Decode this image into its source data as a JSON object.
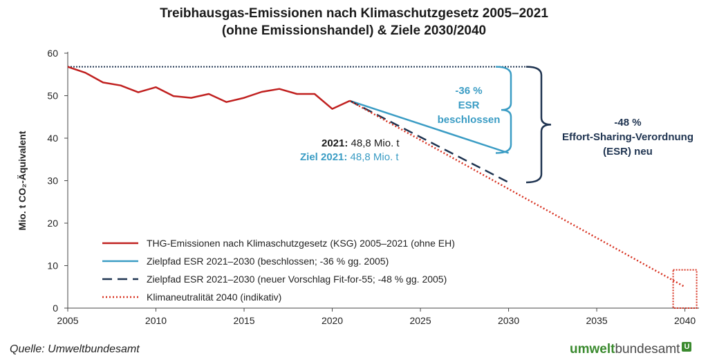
{
  "chart_data": {
    "type": "line",
    "title": "Treibhausgas-Emissionen nach Klimaschutzgesetz 2005–2021",
    "subtitle": "(ohne Emissionshandel) & Ziele 2030/2040",
    "ylabel": "Mio. t CO₂-Äquivalent",
    "xlabel": "",
    "xlim": [
      2005,
      2040.8
    ],
    "ylim": [
      0,
      60
    ],
    "xticks": [
      2005,
      2010,
      2015,
      2020,
      2025,
      2030,
      2035,
      2040
    ],
    "yticks": [
      0,
      10,
      20,
      30,
      40,
      50,
      60
    ],
    "legend_position": "lower-left",
    "grid": false,
    "series": [
      {
        "name": "THG-Emissionen nach Klimaschutzgesetz (KSG) 2005–2021 (ohne EH)",
        "color": "#c0201f",
        "style": "solid",
        "x": [
          2005,
          2006,
          2007,
          2008,
          2009,
          2010,
          2011,
          2012,
          2013,
          2014,
          2015,
          2016,
          2017,
          2018,
          2019,
          2020,
          2021
        ],
        "y": [
          56.8,
          55.4,
          53.1,
          52.4,
          50.8,
          52.0,
          49.9,
          49.5,
          50.4,
          48.5,
          49.5,
          50.9,
          51.6,
          50.4,
          50.4,
          46.9,
          48.8
        ]
      },
      {
        "name": "Zielpfad ESR 2021–2030 (beschlossen; -36 % gg. 2005)",
        "color": "#3a9cc4",
        "style": "solid",
        "x": [
          2021,
          2030
        ],
        "y": [
          48.8,
          36.5
        ]
      },
      {
        "name": "Zielpfad ESR 2021–2030 (neuer Vorschlag Fit-for-55; -48 % gg. 2005)",
        "color": "#1e3350",
        "style": "dashed",
        "x": [
          2021,
          2030
        ],
        "y": [
          48.8,
          29.6
        ]
      },
      {
        "name": "Klimaneutralität 2040 (indikativ)",
        "color": "#d7301f",
        "style": "dotted",
        "x": [
          2021,
          2040
        ],
        "y": [
          48.8,
          5.0
        ]
      }
    ],
    "reference_line": {
      "y": 56.8,
      "x": [
        2005,
        2031
      ],
      "color": "#1e3350",
      "style": "dotted"
    },
    "annotations": {
      "esr_pct": "-36 %",
      "esr_line1": "ESR",
      "esr_line2": "beschlossen",
      "new_pct": "-48 %",
      "new_line1": "Effort-Sharing-Verordnung",
      "new_line2": "(ESR) neu",
      "actual_label": "2021:",
      "actual_value": "48,8 Mio. t",
      "target_label": "Ziel 2021:",
      "target_value": "48,8 Mio. t"
    }
  },
  "footer": {
    "source": "Quelle: Umweltbundesamt",
    "logo_part1": "umwelt",
    "logo_part2": "bundesamt",
    "logo_mark": "U"
  },
  "colors": {
    "emissions": "#c0201f",
    "esr_decided": "#3a9cc4",
    "esr_new": "#1e3350",
    "neutrality": "#d7301f",
    "logo_green": "#3a8a2e"
  }
}
